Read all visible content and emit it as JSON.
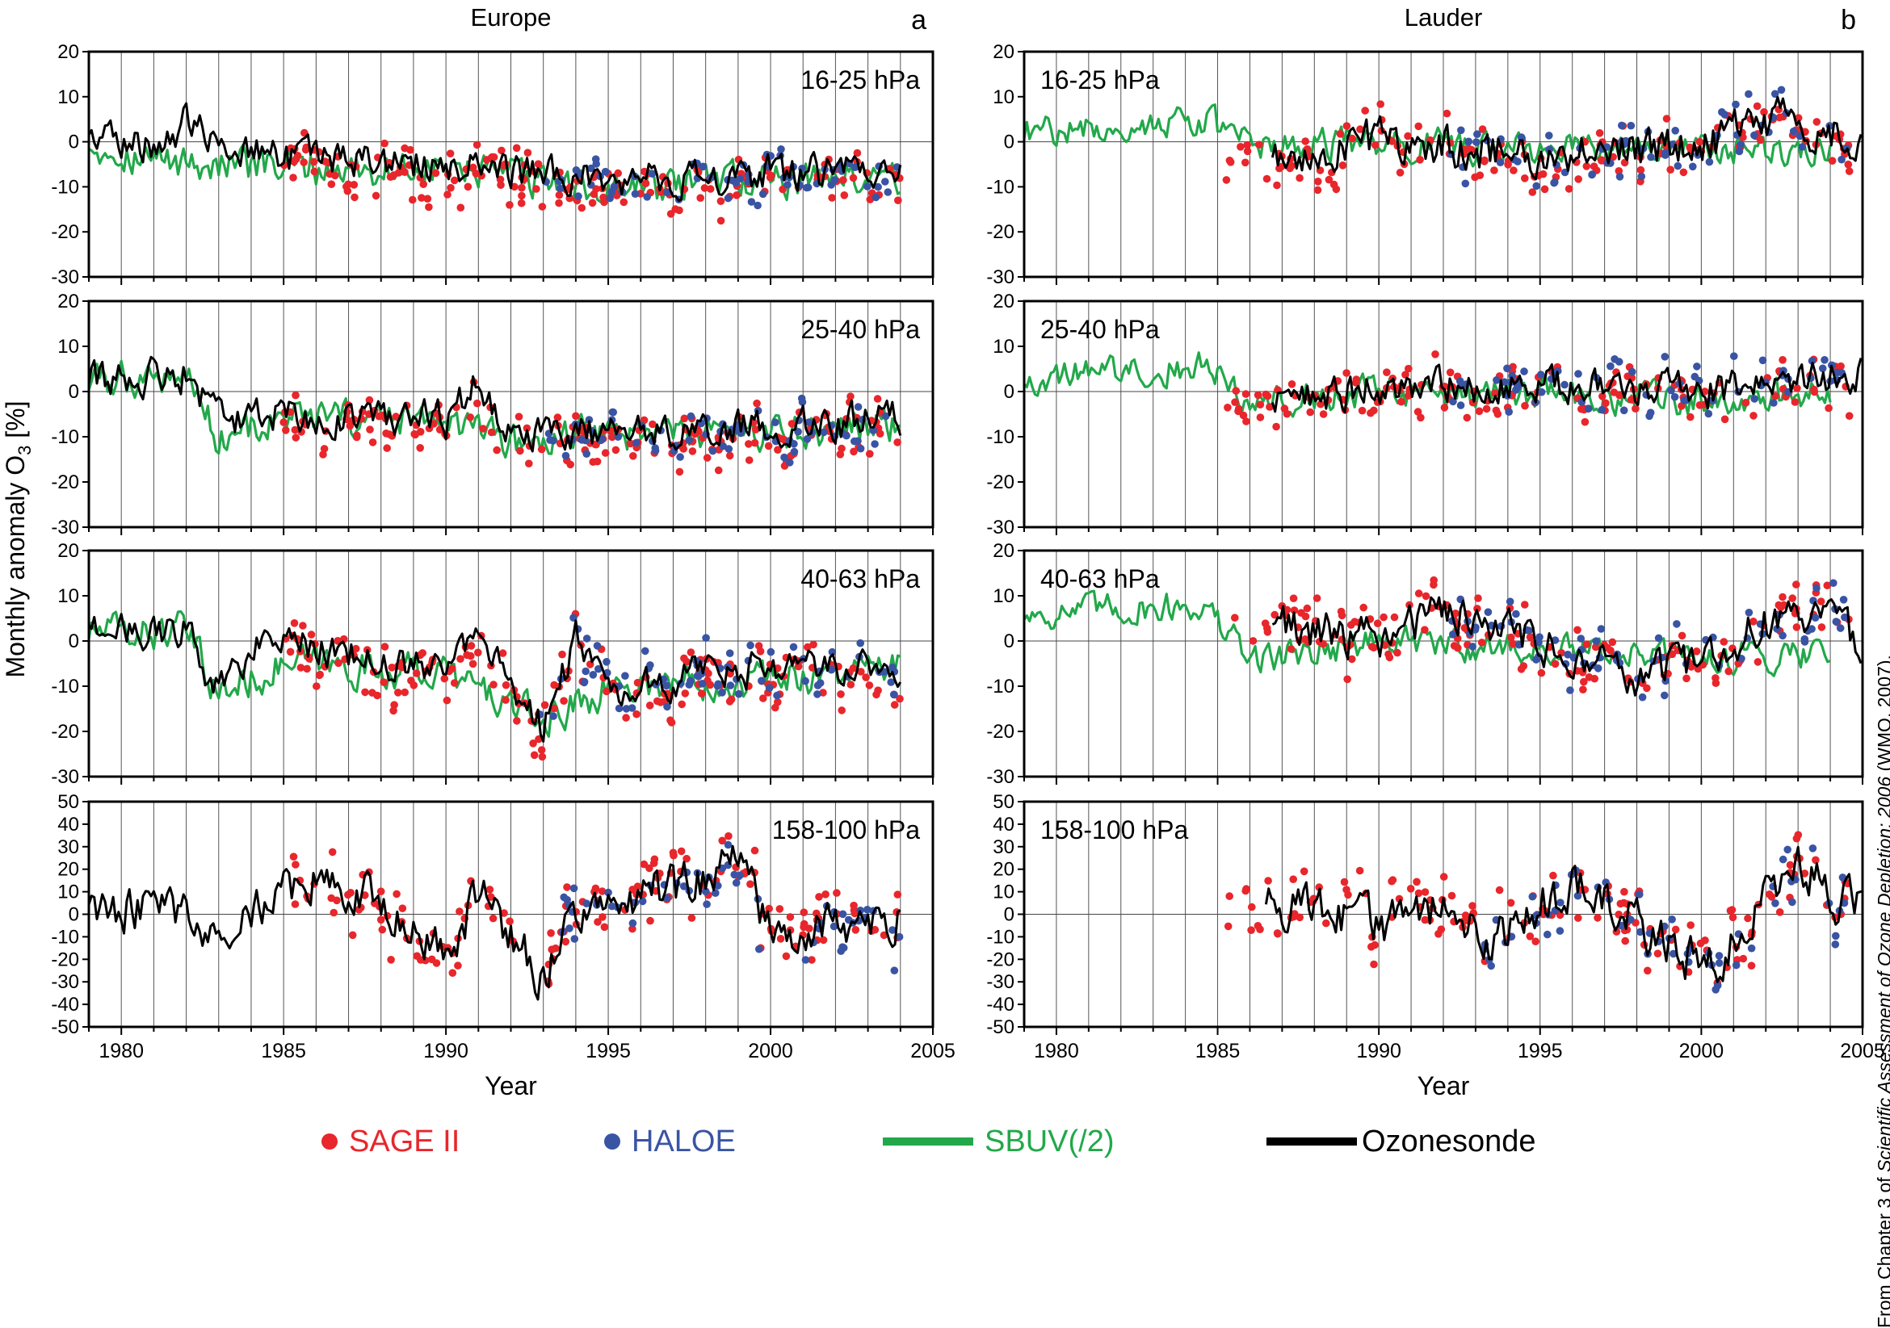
{
  "chart_data": {
    "type": "line+scatter",
    "ylabel": "Monthly anomaly O3 [%]",
    "xlabel": "Year",
    "x_ticks": [
      1980,
      1985,
      1990,
      1995,
      2000,
      2005
    ],
    "xlim": [
      1979,
      2005
    ],
    "columns": [
      {
        "title": "Europe",
        "letter": "a"
      },
      {
        "title": "Lauder",
        "letter": "b"
      }
    ],
    "rows": [
      {
        "label": "16-25 hPa",
        "ylim": [
          -30,
          20
        ],
        "yticks": [
          -30,
          -20,
          -10,
          0,
          10,
          20
        ]
      },
      {
        "label": "25-40 hPa",
        "ylim": [
          -30,
          20
        ],
        "yticks": [
          -30,
          -20,
          -10,
          0,
          10,
          20
        ]
      },
      {
        "label": "40-63 hPa",
        "ylim": [
          -30,
          20
        ],
        "yticks": [
          -30,
          -20,
          -10,
          0,
          10,
          20
        ]
      },
      {
        "label": "158-100 hPa",
        "ylim": [
          -50,
          50
        ],
        "yticks": [
          -50,
          -40,
          -30,
          -20,
          -10,
          0,
          10,
          20,
          30,
          40,
          50
        ]
      }
    ],
    "series": [
      {
        "name": "SAGE II",
        "kind": "points",
        "color": "#e8262b"
      },
      {
        "name": "HALOE",
        "kind": "points",
        "color": "#3a54a4"
      },
      {
        "name": "SBUV(/2)",
        "kind": "line",
        "color": "#22a84a"
      },
      {
        "name": "Ozonesonde",
        "kind": "line",
        "color": "#000000"
      }
    ],
    "panels": [
      {
        "col": 0,
        "row": 0,
        "sonde": {
          "start": 1979.0,
          "end": 2004.0,
          "base": [
            [
              1979,
              2
            ],
            [
              1981,
              -1
            ],
            [
              1982,
              4
            ],
            [
              1985,
              -4
            ],
            [
              1990,
              -5
            ],
            [
              1995,
              -9
            ],
            [
              2000,
              -7
            ],
            [
              2004,
              -7
            ]
          ],
          "noise": 3.5
        },
        "sbuv": {
          "start": 1979.0,
          "end": 2004.0,
          "base": [
            [
              1979,
              0
            ],
            [
              1981,
              -4
            ],
            [
              1985,
              -6
            ],
            [
              1990,
              -6
            ],
            [
              1995,
              -11
            ],
            [
              2000,
              -8
            ],
            [
              2004,
              -8
            ]
          ],
          "noise": 3.5
        },
        "sage": {
          "start": 1985.0,
          "end": 2004.0,
          "n": 170,
          "offset": -2,
          "noise": 4
        },
        "haloe": {
          "start": 1992.9,
          "end": 2004.0,
          "n": 70,
          "offset": -1,
          "noise": 4
        }
      },
      {
        "col": 1,
        "row": 0,
        "sonde": {
          "start": 1986.7,
          "end": 2005.0,
          "base": [
            [
              1986.7,
              -3
            ],
            [
              1990,
              0
            ],
            [
              1995,
              -3
            ],
            [
              2000,
              -1
            ],
            [
              2002,
              5
            ],
            [
              2005,
              0
            ]
          ],
          "noise": 4
        },
        "sbuv": {
          "start": 1979.0,
          "end": 2004.0,
          "base": [
            [
              1979,
              2
            ],
            [
              1984.5,
              5
            ],
            [
              1986,
              -1
            ],
            [
              1990,
              0
            ],
            [
              1995,
              -2
            ],
            [
              2000,
              -1
            ],
            [
              2004,
              -2
            ]
          ],
          "noise": 3
        },
        "sage": {
          "start": 1985.2,
          "end": 2004.6,
          "n": 150,
          "offset": -1,
          "noise": 4
        },
        "haloe": {
          "start": 1992.2,
          "end": 2004.6,
          "n": 70,
          "offset": 0,
          "noise": 4
        }
      },
      {
        "col": 0,
        "row": 1,
        "sonde": {
          "start": 1979.0,
          "end": 2004.0,
          "base": [
            [
              1979,
              2
            ],
            [
              1982,
              4
            ],
            [
              1983,
              -6
            ],
            [
              1985,
              -5
            ],
            [
              1990,
              -6
            ],
            [
              1991,
              2
            ],
            [
              1992,
              -8
            ],
            [
              1995,
              -10
            ],
            [
              2000,
              -8
            ],
            [
              2004,
              -6
            ]
          ],
          "noise": 3.5
        },
        "sbuv": {
          "start": 1979.0,
          "end": 2004.0,
          "base": [
            [
              1979,
              2
            ],
            [
              1982,
              4
            ],
            [
              1983,
              -10
            ],
            [
              1985,
              -6
            ],
            [
              1990,
              -7
            ],
            [
              1992,
              -12
            ],
            [
              1995,
              -9
            ],
            [
              2000,
              -9
            ],
            [
              2004,
              -7
            ]
          ],
          "noise": 3.5
        },
        "sage": {
          "start": 1985.0,
          "end": 2004.0,
          "n": 170,
          "offset": -2,
          "noise": 4
        },
        "haloe": {
          "start": 1992.9,
          "end": 2004.0,
          "n": 70,
          "offset": -1,
          "noise": 4
        }
      },
      {
        "col": 1,
        "row": 1,
        "sonde": {
          "start": 1986.7,
          "end": 2005.0,
          "base": [
            [
              1986.7,
              -2
            ],
            [
              1990,
              1
            ],
            [
              1995,
              1
            ],
            [
              2000,
              0
            ],
            [
              2005,
              4
            ]
          ],
          "noise": 3.5
        },
        "sbuv": {
          "start": 1979.0,
          "end": 2004.0,
          "base": [
            [
              1979,
              3
            ],
            [
              1984.5,
              6
            ],
            [
              1986,
              -2
            ],
            [
              1990,
              0
            ],
            [
              1995,
              -1
            ],
            [
              2000,
              -2
            ],
            [
              2004,
              0
            ]
          ],
          "noise": 3
        },
        "sage": {
          "start": 1985.2,
          "end": 2004.6,
          "n": 150,
          "offset": -1,
          "noise": 4
        },
        "haloe": {
          "start": 1992.2,
          "end": 2004.6,
          "n": 70,
          "offset": 0,
          "noise": 4
        }
      },
      {
        "col": 0,
        "row": 2,
        "sonde": {
          "start": 1979.0,
          "end": 2004.0,
          "base": [
            [
              1979,
              4
            ],
            [
              1982,
              2
            ],
            [
              1983,
              -12
            ],
            [
              1984.5,
              2
            ],
            [
              1986,
              -2
            ],
            [
              1990,
              -6
            ],
            [
              1991,
              2
            ],
            [
              1993,
              -20
            ],
            [
              1994,
              0
            ],
            [
              1995,
              -10
            ],
            [
              2000,
              -6
            ],
            [
              2004,
              -6
            ]
          ],
          "noise": 3.5
        },
        "sbuv": {
          "start": 1979.0,
          "end": 2004.0,
          "base": [
            [
              1979,
              2
            ],
            [
              1982,
              2
            ],
            [
              1983,
              -12
            ],
            [
              1985,
              -5
            ],
            [
              1990,
              -7
            ],
            [
              1993,
              -18
            ],
            [
              1995,
              -10
            ],
            [
              2000,
              -8
            ],
            [
              2004,
              -6
            ]
          ],
          "noise": 3.5
        },
        "sage": {
          "start": 1985.0,
          "end": 2004.0,
          "n": 170,
          "offset": -2,
          "noise": 5
        },
        "haloe": {
          "start": 1992.9,
          "end": 2004.0,
          "n": 70,
          "offset": 0,
          "noise": 5
        }
      },
      {
        "col": 1,
        "row": 2,
        "sonde": {
          "start": 1986.7,
          "end": 2005.0,
          "base": [
            [
              1986.7,
              4
            ],
            [
              1990,
              0
            ],
            [
              1992,
              6
            ],
            [
              1995,
              0
            ],
            [
              1997.5,
              -8
            ],
            [
              2000,
              -4
            ],
            [
              2003,
              8
            ],
            [
              2005,
              0
            ]
          ],
          "noise": 4
        },
        "sbuv": {
          "start": 1979.0,
          "end": 2004.0,
          "base": [
            [
              1979,
              6
            ],
            [
              1984.5,
              8
            ],
            [
              1986,
              -4
            ],
            [
              1990,
              0
            ],
            [
              1995,
              -2
            ],
            [
              2000,
              -4
            ],
            [
              2004,
              -2
            ]
          ],
          "noise": 3
        },
        "sage": {
          "start": 1985.2,
          "end": 2004.6,
          "n": 150,
          "offset": 0,
          "noise": 5
        },
        "haloe": {
          "start": 1992.2,
          "end": 2004.6,
          "n": 70,
          "offset": 0,
          "noise": 5
        }
      },
      {
        "col": 0,
        "row": 3,
        "sonde": {
          "start": 1979.0,
          "end": 2004.0,
          "base": [
            [
              1979,
              5
            ],
            [
              1983,
              -5
            ],
            [
              1986,
              15
            ],
            [
              1988,
              5
            ],
            [
              1990,
              -20
            ],
            [
              1991,
              10
            ],
            [
              1993,
              -30
            ],
            [
              1994,
              0
            ],
            [
              1998,
              15
            ],
            [
              1999,
              25
            ],
            [
              2000,
              -10
            ],
            [
              2004,
              0
            ]
          ],
          "noise": 9
        },
        "sage": {
          "start": 1985.0,
          "end": 2004.0,
          "n": 150,
          "offset": 0,
          "noise": 12
        },
        "haloe": {
          "start": 1993.5,
          "end": 2004.0,
          "n": 60,
          "offset": -2,
          "noise": 10
        }
      },
      {
        "col": 1,
        "row": 3,
        "sonde": {
          "start": 1986.5,
          "end": 2005.0,
          "base": [
            [
              1986.5,
              5
            ],
            [
              1990,
              -5
            ],
            [
              1992,
              5
            ],
            [
              1993.5,
              -15
            ],
            [
              1995,
              5
            ],
            [
              1996.5,
              15
            ],
            [
              1999.5,
              -20
            ],
            [
              2000.5,
              -20
            ],
            [
              2002,
              5
            ],
            [
              2003,
              20
            ],
            [
              2005,
              0
            ]
          ],
          "noise": 9
        },
        "sage": {
          "start": 1985.2,
          "end": 2004.6,
          "n": 140,
          "offset": 0,
          "noise": 12
        },
        "haloe": {
          "start": 1993.2,
          "end": 2004.6,
          "n": 60,
          "offset": 0,
          "noise": 10
        }
      }
    ]
  },
  "legend": {
    "sage": "SAGE II",
    "haloe": "HALOE",
    "sbuv": "SBUV(/2)",
    "sonde": "Ozonesonde"
  },
  "credit": {
    "prefix": "From Chapter 3 of ",
    "title": "Scientific Assessment of Ozone Depletion: 2006",
    "suffix": " (WMO, 2007)."
  }
}
